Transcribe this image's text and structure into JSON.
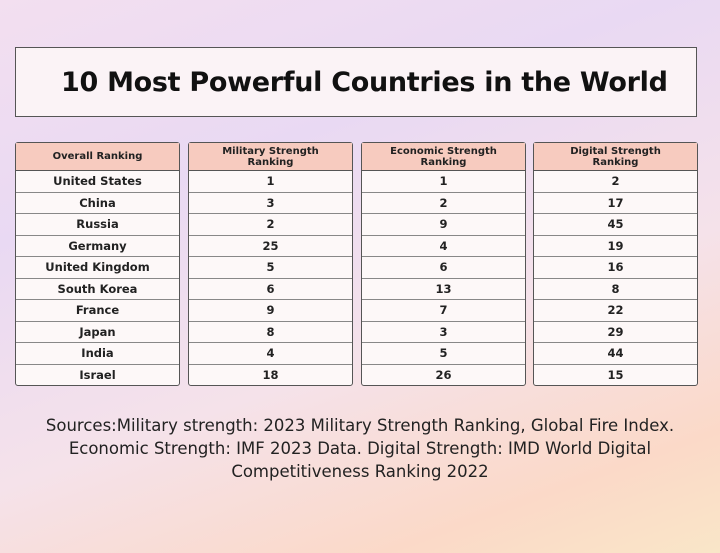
{
  "header": {
    "title": "10 Most Powerful Countries in the World"
  },
  "table": {
    "columns": [
      "Overall Ranking",
      "Military Strength Ranking",
      "Economic Strength Ranking",
      "Digital Strength Ranking"
    ],
    "rows": [
      [
        "United States",
        1,
        1,
        2
      ],
      [
        "China",
        3,
        2,
        17
      ],
      [
        "Russia",
        2,
        9,
        45
      ],
      [
        "Germany",
        25,
        4,
        19
      ],
      [
        "United Kingdom",
        5,
        6,
        16
      ],
      [
        "South Korea",
        6,
        13,
        8
      ],
      [
        "France",
        9,
        7,
        22
      ],
      [
        "Japan",
        8,
        3,
        29
      ],
      [
        "India",
        4,
        5,
        44
      ],
      [
        "Israel",
        18,
        26,
        15
      ]
    ]
  },
  "footer": {
    "sources": "Sources:Military strength: 2023 Military Strength Ranking, Global Fire Index. Economic Strength: IMF 2023 Data. Digital Strength: IMD World Digital Competitiveness Ranking 2022"
  }
}
